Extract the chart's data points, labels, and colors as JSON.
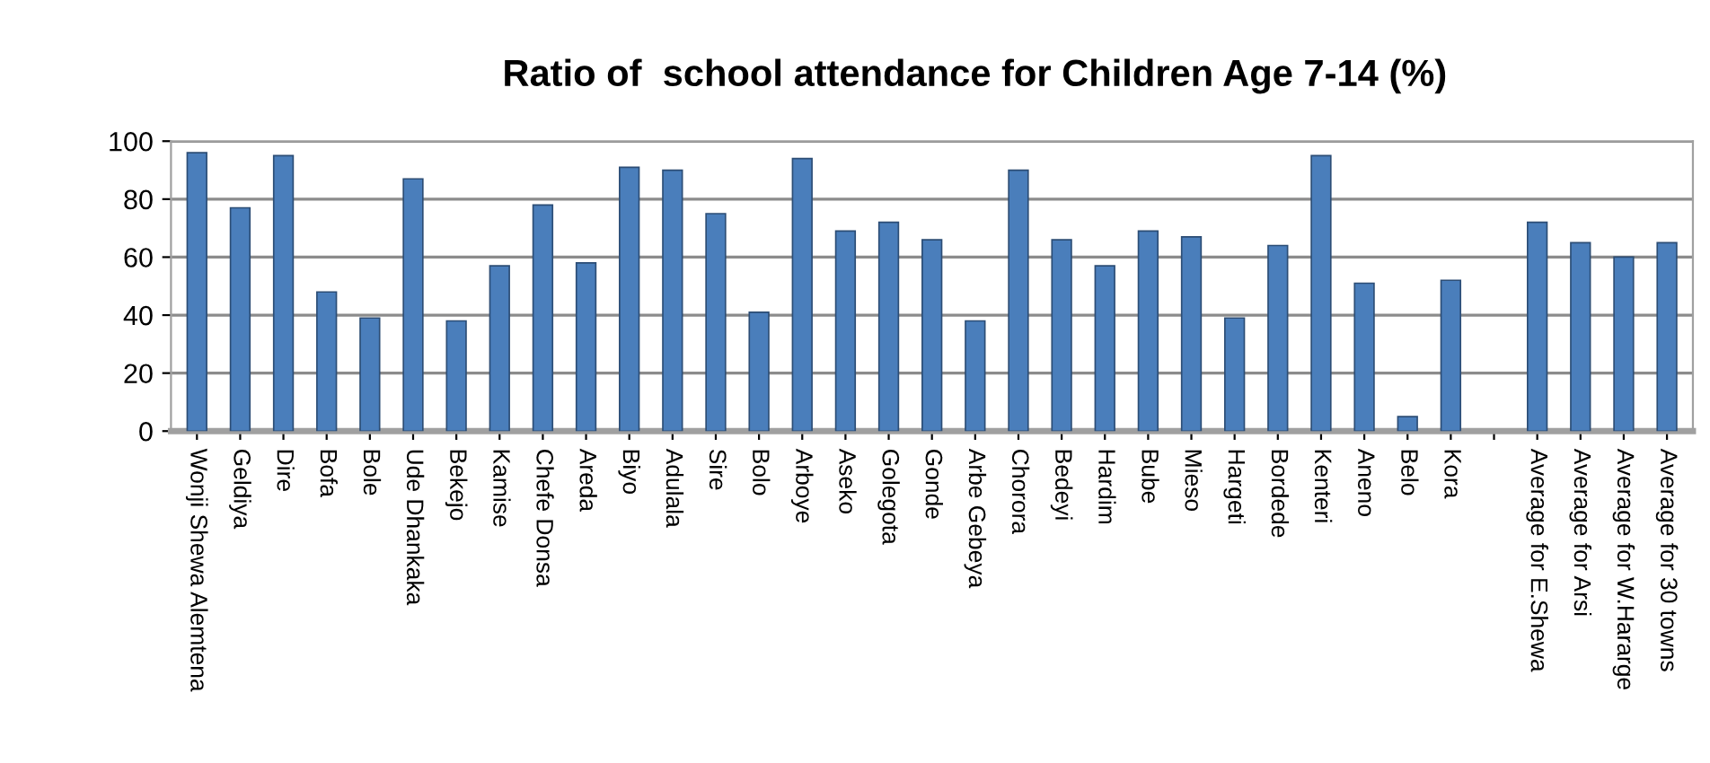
{
  "chart_data": {
    "type": "bar",
    "title": "Ratio of  school attendance for Children Age 7-14 (%)",
    "categories": [
      "Wonji Shewa Alemtena",
      "Geldiya",
      "Dire",
      "Bofa",
      "Bole",
      "Ude Dhankaka",
      "Bekejo",
      "Kamise",
      "Chefe Donsa",
      "Areda",
      "Biyo",
      "Adulala",
      "Sire",
      "Bolo",
      "Arboye",
      "Aseko",
      "Golegota",
      "Gonde",
      "Arbe Gebeya",
      "Chorora",
      "Bedeyi",
      "Hardim",
      "Bube",
      "Mieso",
      "Hargeti",
      "Bordede",
      "Kenteri",
      "Aneno",
      "Belo",
      "Kora",
      null,
      "Average for E.Shewa",
      "Average for Arsi",
      "Average for W.Hararge",
      "Average for 30 towns"
    ],
    "values": [
      96,
      77,
      95,
      48,
      39,
      87,
      38,
      57,
      78,
      58,
      91,
      90,
      75,
      41,
      94,
      69,
      72,
      66,
      38,
      90,
      66,
      57,
      69,
      67,
      39,
      64,
      95,
      51,
      5,
      52,
      null,
      72,
      65,
      60,
      65
    ],
    "color": "#4a7ebb",
    "ylim": [
      0,
      100
    ],
    "yticks": [
      0,
      20,
      40,
      60,
      80,
      100
    ],
    "grid": "y",
    "legend": false
  }
}
